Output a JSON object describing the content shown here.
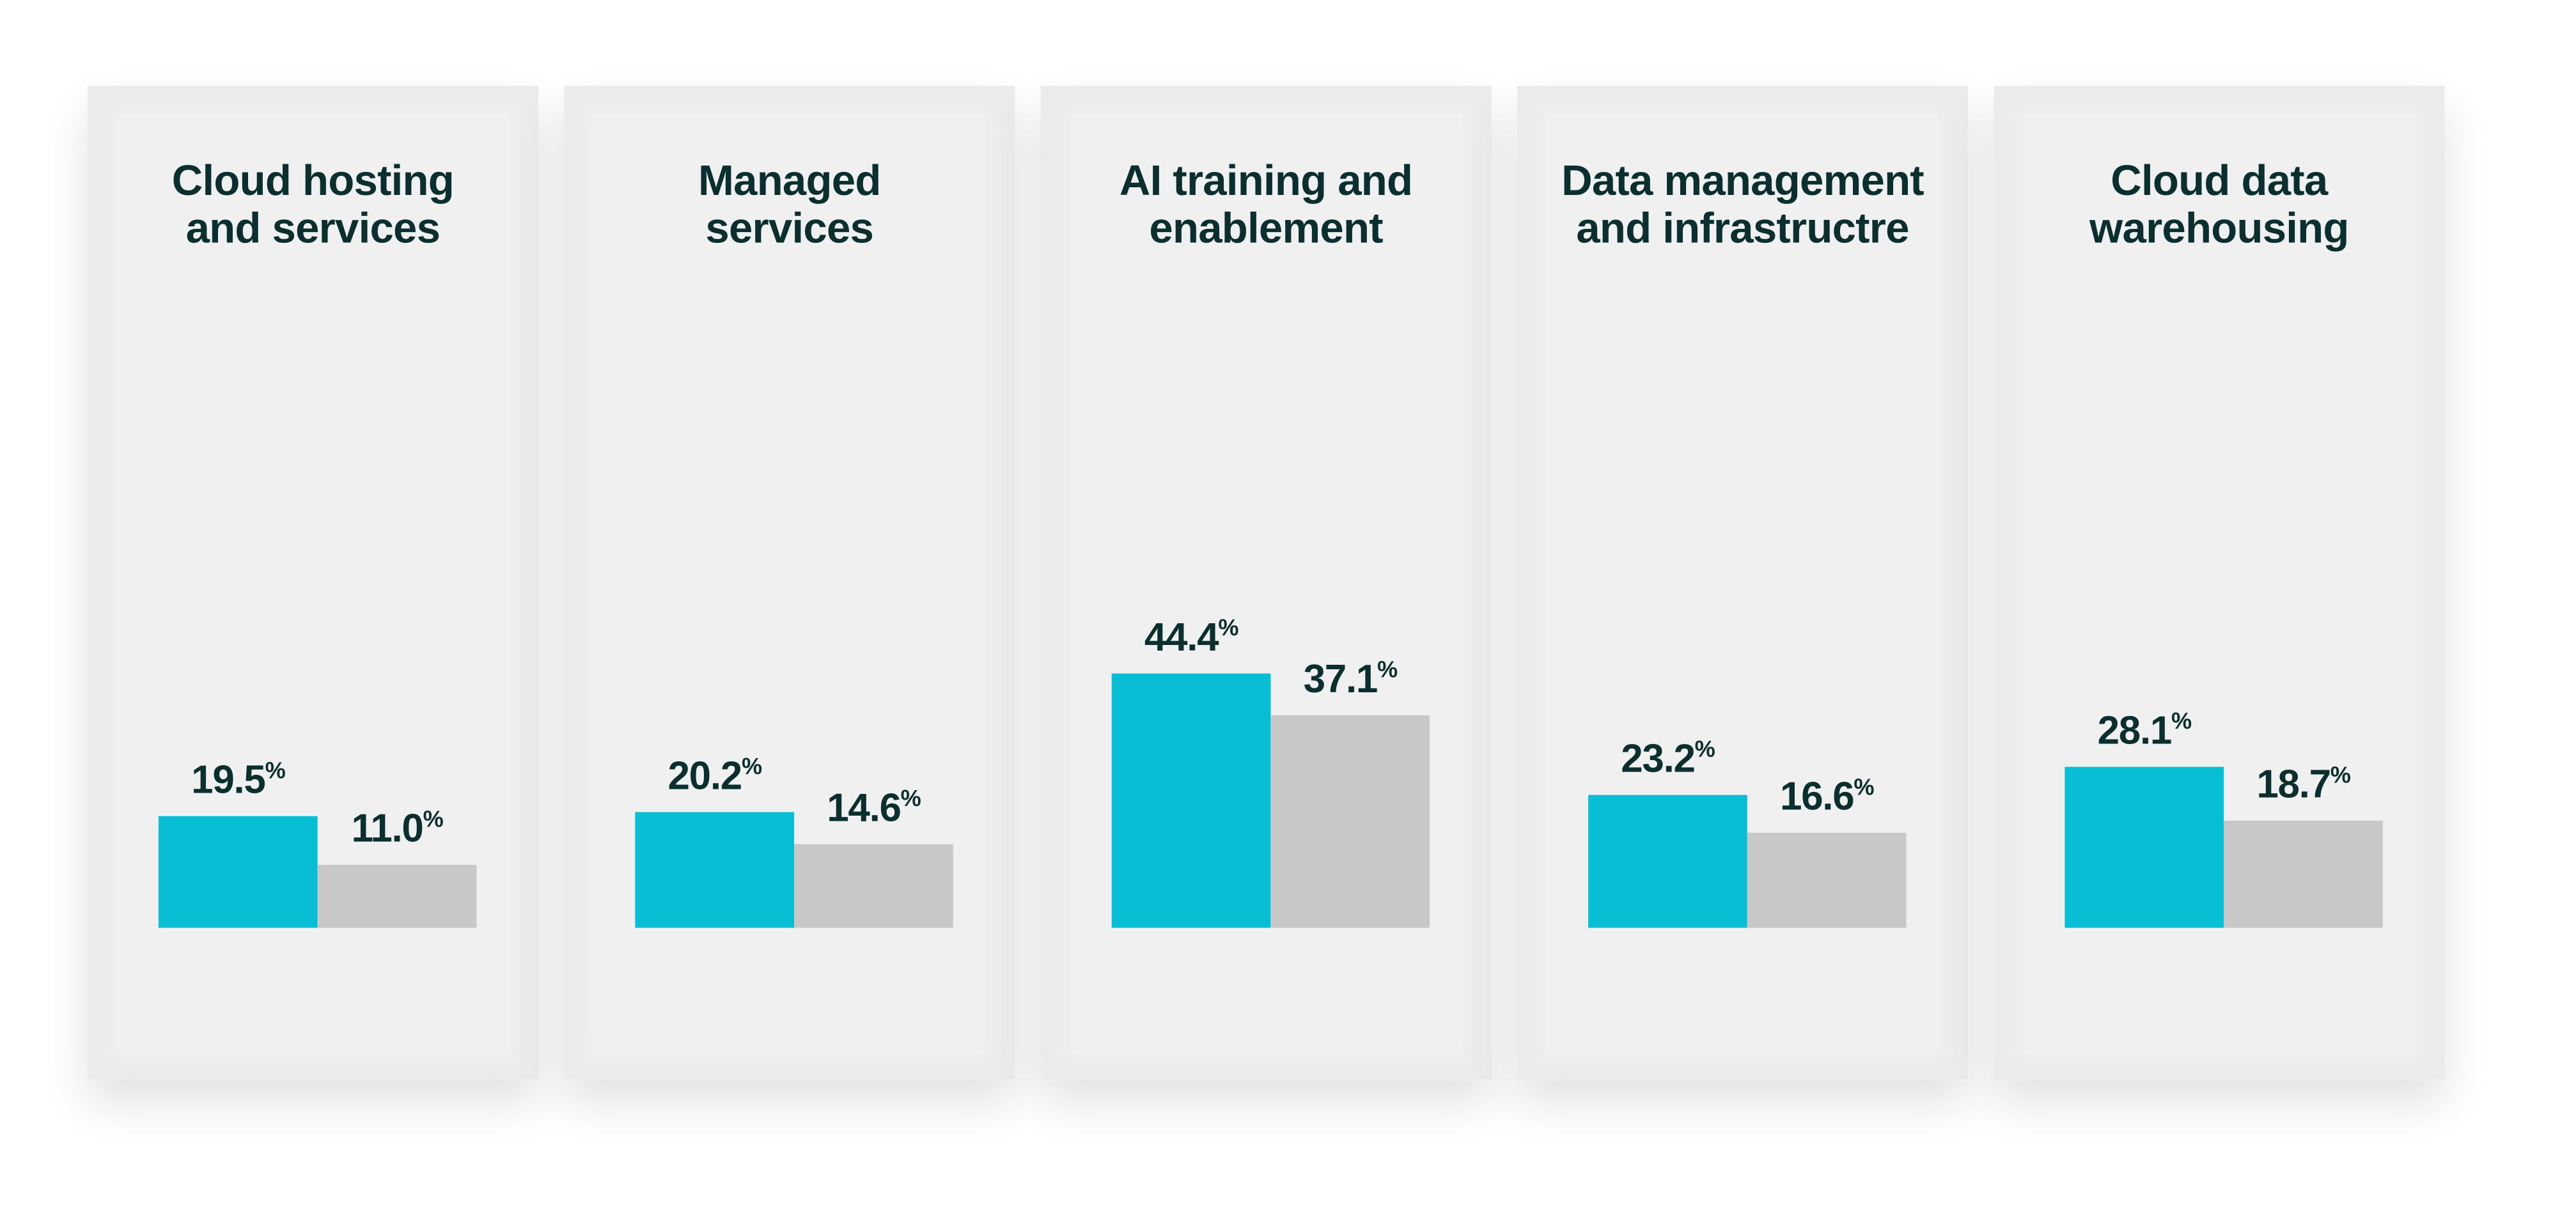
{
  "chart_data": [
    {
      "type": "bar",
      "title": "Cloud hosting\nand services",
      "values": [
        19.5,
        11.0
      ],
      "value_labels": [
        "19.5%",
        "11.0%"
      ],
      "colors": [
        "#08bed5",
        "#c8c8c8"
      ],
      "ylim": [
        0,
        100
      ]
    },
    {
      "type": "bar",
      "title": "Managed\nservices",
      "values": [
        20.2,
        14.6
      ],
      "value_labels": [
        "20.2%",
        "14.6%"
      ],
      "colors": [
        "#08bed5",
        "#c8c8c8"
      ],
      "ylim": [
        0,
        100
      ]
    },
    {
      "type": "bar",
      "title": "AI training and\nenablement",
      "values": [
        44.4,
        37.1
      ],
      "value_labels": [
        "44.4%",
        "37.1%"
      ],
      "colors": [
        "#08bed5",
        "#c8c8c8"
      ],
      "ylim": [
        0,
        100
      ]
    },
    {
      "type": "bar",
      "title": "Data management\nand infrastructre",
      "values": [
        23.2,
        16.6
      ],
      "value_labels": [
        "23.2%",
        "16.6%"
      ],
      "colors": [
        "#08bed5",
        "#c8c8c8"
      ],
      "ylim": [
        0,
        100
      ]
    },
    {
      "type": "bar",
      "title": "Cloud data\nwarehousing",
      "values": [
        28.1,
        18.7
      ],
      "value_labels": [
        "28.1%",
        "18.7%"
      ],
      "colors": [
        "#08bed5",
        "#c8c8c8"
      ],
      "ylim": [
        0,
        100
      ]
    }
  ]
}
